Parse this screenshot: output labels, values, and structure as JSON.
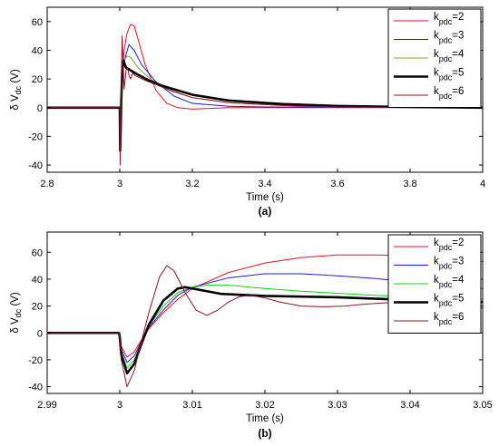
{
  "chart_data": [
    {
      "type": "line",
      "panel_label": "(a)",
      "xlabel": "Time (s)",
      "ylabel": "δ V",
      "ylabel_sub": "dc",
      "ylabel_suffix": " (V)",
      "xlim": [
        2.8,
        4.0
      ],
      "ylim": [
        -45,
        70
      ],
      "xticks": [
        2.8,
        3.0,
        3.2,
        3.4,
        3.6,
        3.8,
        4.0
      ],
      "xtick_labels": [
        "2.8",
        "3",
        "3.2",
        "3.4",
        "3.6",
        "3.8",
        "4"
      ],
      "yticks": [
        -40,
        -20,
        0,
        20,
        40,
        60
      ],
      "ytick_labels": [
        "-40",
        "-20",
        "0",
        "20",
        "40",
        "60"
      ],
      "grid": false,
      "legend_position": "top-right",
      "series": [
        {
          "name_main": "k",
          "name_sub": "pdc",
          "name_rest": "=2",
          "color": "#e8141c",
          "width": 1,
          "x": [
            2.8,
            2.999,
            3.0,
            3.0012,
            3.0025,
            3.004,
            3.006,
            3.008,
            3.012,
            3.02,
            3.03,
            3.04,
            3.05,
            3.07,
            3.1,
            3.13,
            3.16,
            3.2,
            3.3,
            4.0
          ],
          "y": [
            0,
            0,
            0,
            -18,
            -10,
            5,
            18,
            28,
            40,
            52,
            58,
            57,
            48,
            30,
            12,
            3,
            0,
            -1,
            0,
            0
          ]
        },
        {
          "name_main": "k",
          "name_sub": "pdc",
          "name_rest": "=3",
          "color": "#1a1aeb",
          "width": 1,
          "x": [
            2.8,
            2.999,
            3.0,
            3.0012,
            3.0025,
            3.004,
            3.007,
            3.012,
            3.025,
            3.04,
            3.06,
            3.1,
            3.15,
            3.2,
            3.3,
            3.4,
            4.0
          ],
          "y": [
            0,
            0,
            0,
            -22,
            -12,
            4,
            20,
            32,
            44,
            40,
            30,
            18,
            8,
            3,
            1,
            0.5,
            0
          ]
        },
        {
          "name_main": "k",
          "name_sub": "pdc",
          "name_rest": "=4",
          "color": "#7aaa2a",
          "width": 1,
          "x": [
            2.8,
            2.999,
            3.0,
            3.0012,
            3.0025,
            3.004,
            3.007,
            3.012,
            3.02,
            3.03,
            3.05,
            3.08,
            3.12,
            3.2,
            3.3,
            3.45,
            3.6,
            4.0
          ],
          "y": [
            0,
            0,
            0,
            -26,
            -14,
            4,
            24,
            33,
            36,
            35,
            28,
            21,
            14,
            7,
            3.5,
            1.5,
            0.5,
            0
          ]
        },
        {
          "name_main": "k",
          "name_sub": "pdc",
          "name_rest": "=5",
          "color": "#000000",
          "width": 2.6,
          "x": [
            2.8,
            2.999,
            3.0,
            3.0012,
            3.0025,
            3.004,
            3.007,
            3.01,
            3.017,
            3.03,
            3.05,
            3.08,
            3.12,
            3.2,
            3.3,
            3.45,
            3.6,
            3.8,
            4.0
          ],
          "y": [
            0,
            0,
            0,
            -30,
            -16,
            4,
            27,
            33,
            28,
            26,
            23,
            19,
            15,
            9,
            5,
            2.5,
            1.2,
            0.5,
            0
          ]
        },
        {
          "name_main": "k",
          "name_sub": "pdc",
          "name_rest": "=6",
          "color": "#8c1525",
          "width": 1,
          "x": [
            2.8,
            2.999,
            3.0,
            3.0012,
            3.0025,
            3.004,
            3.0065,
            3.009,
            3.012,
            3.015,
            3.018,
            3.022,
            3.026,
            3.03,
            3.035,
            3.045,
            3.07,
            3.1,
            3.15,
            3.2,
            3.3,
            3.45,
            3.6,
            4.0
          ],
          "y": [
            0,
            0,
            0,
            -40,
            -22,
            12,
            50,
            32,
            13,
            20,
            27,
            27,
            22,
            20,
            24,
            22,
            19,
            16,
            11,
            7,
            3.5,
            1.5,
            0.5,
            0
          ]
        }
      ]
    },
    {
      "type": "line",
      "panel_label": "(b)",
      "xlabel": "Time (s)",
      "ylabel": "δ V",
      "ylabel_sub": "dc",
      "ylabel_suffix": " (V)",
      "xlim": [
        2.99,
        3.05
      ],
      "ylim": [
        -45,
        75
      ],
      "xticks": [
        2.99,
        3.0,
        3.01,
        3.02,
        3.03,
        3.04,
        3.05
      ],
      "xtick_labels": [
        "2.99",
        "3",
        "3.01",
        "3.02",
        "3.03",
        "3.04",
        "3.05"
      ],
      "yticks": [
        -40,
        -20,
        0,
        20,
        40,
        60
      ],
      "ytick_labels": [
        "-40",
        "-20",
        "0",
        "20",
        "40",
        "60"
      ],
      "grid": false,
      "legend_position": "top-right",
      "series": [
        {
          "name_main": "k",
          "name_sub": "pdc",
          "name_rest": "=2",
          "color": "#e8141c",
          "width": 1,
          "x": [
            2.99,
            2.9999,
            3.0,
            3.0002,
            3.001,
            3.002,
            3.003,
            3.004,
            3.006,
            3.008,
            3.01,
            3.015,
            3.02,
            3.025,
            3.03,
            3.035,
            3.04,
            3.045,
            3.05
          ],
          "y": [
            0,
            0,
            -3,
            -10,
            -18,
            -14,
            -5,
            3,
            15,
            25,
            33,
            45,
            52,
            56,
            58,
            58,
            57.5,
            56,
            53
          ]
        },
        {
          "name_main": "k",
          "name_sub": "pdc",
          "name_rest": "=3",
          "color": "#1a1aeb",
          "width": 1,
          "x": [
            2.99,
            2.9999,
            3.0,
            3.0002,
            3.001,
            3.002,
            3.003,
            3.004,
            3.006,
            3.008,
            3.01,
            3.015,
            3.02,
            3.025,
            3.03,
            3.035,
            3.04,
            3.045,
            3.05
          ],
          "y": [
            0,
            0,
            -3,
            -12,
            -22,
            -17,
            -6,
            4,
            17,
            28,
            34,
            41,
            44,
            44,
            42.5,
            40.5,
            38,
            36,
            33
          ]
        },
        {
          "name_main": "k",
          "name_sub": "pdc",
          "name_rest": "=4",
          "color": "#16d016",
          "width": 1,
          "x": [
            2.99,
            2.9999,
            3.0,
            3.0002,
            3.001,
            3.002,
            3.003,
            3.004,
            3.006,
            3.008,
            3.01,
            3.012,
            3.015,
            3.02,
            3.025,
            3.03,
            3.035,
            3.04,
            3.045,
            3.05
          ],
          "y": [
            0,
            0,
            -3,
            -14,
            -26,
            -20,
            -7,
            5,
            20,
            30,
            34,
            35.5,
            35.5,
            33,
            31,
            29.5,
            28,
            27,
            26,
            25
          ]
        },
        {
          "name_main": "k",
          "name_sub": "pdc",
          "name_rest": "=5",
          "color": "#000000",
          "width": 2.6,
          "x": [
            2.99,
            2.9999,
            3.0,
            3.0002,
            3.001,
            3.002,
            3.003,
            3.004,
            3.006,
            3.008,
            3.009,
            3.011,
            3.014,
            3.02,
            3.025,
            3.03,
            3.035,
            3.04,
            3.045,
            3.05
          ],
          "y": [
            0,
            0,
            -3,
            -16,
            -30,
            -23,
            -8,
            6,
            24,
            33,
            34,
            32,
            29,
            27.5,
            27,
            26.5,
            25.5,
            24.5,
            23.5,
            23
          ]
        },
        {
          "name_main": "k",
          "name_sub": "pdc",
          "name_rest": "=6",
          "color": "#8c1525",
          "width": 1,
          "x": [
            2.99,
            2.9999,
            3.0,
            3.0002,
            3.001,
            3.002,
            3.003,
            3.004,
            3.0055,
            3.0065,
            3.0075,
            3.009,
            3.0105,
            3.012,
            3.0135,
            3.015,
            3.0165,
            3.018,
            3.02,
            3.022,
            3.025,
            3.028,
            3.031,
            3.034,
            3.037,
            3.04,
            3.043,
            3.046,
            3.05
          ],
          "y": [
            0,
            0,
            -4,
            -20,
            -40,
            -28,
            -6,
            15,
            42,
            50,
            46,
            30,
            17,
            13,
            17,
            23,
            27,
            28,
            26,
            23,
            20,
            19.5,
            20,
            21.5,
            22.5,
            21.5,
            20,
            19,
            18.5
          ]
        }
      ]
    }
  ]
}
